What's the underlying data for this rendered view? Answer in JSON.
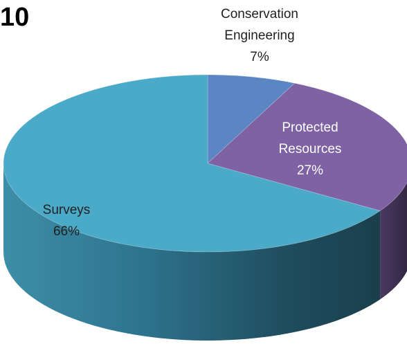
{
  "title": "10",
  "chart_data": {
    "type": "pie",
    "three_d": true,
    "slices": [
      {
        "label": [
          "Conservation",
          "Engineering",
          "7%"
        ],
        "value": 7,
        "color": "#5B86C4",
        "label_color": "#1f1f1f"
      },
      {
        "label": [
          "Protected",
          "Resources",
          "27%"
        ],
        "value": 27,
        "color": "#7E62A4",
        "label_color": "#ffffff"
      },
      {
        "label": [
          "Surveys",
          "66%"
        ],
        "value": 66,
        "color": "#4BAAC8",
        "label_color": "#1f1f1f"
      }
    ]
  }
}
